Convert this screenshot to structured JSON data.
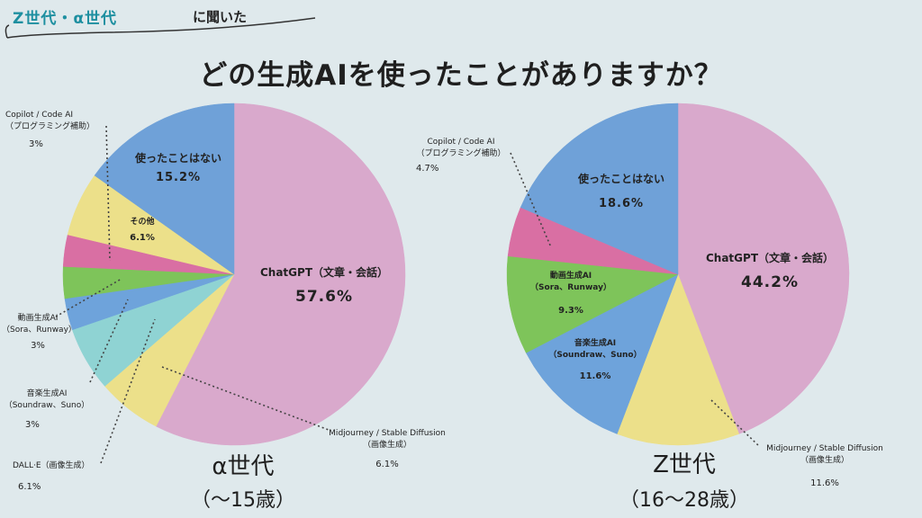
{
  "header": {
    "tag": "Z世代・α世代",
    "tag_suffix": "に聞いた"
  },
  "title": "どの生成AIを使ったことがありますか？",
  "chart_data": [
    {
      "type": "pie",
      "title": "α世代",
      "subtitle": "（～15歳）",
      "slices": [
        {
          "label": "ChatGPT（文章・会話）",
          "value": 57.6,
          "color": "#d9a9cc",
          "pct_text": "57.6%"
        },
        {
          "label": "Midjourney / Stable Diffusion（画像生成）",
          "value": 6.1,
          "color": "#ece08a",
          "pct_text": "6.1%"
        },
        {
          "label": "DALL·E（画像生成）",
          "value": 6.1,
          "color": "#8fd3d3",
          "pct_text": "6.1%"
        },
        {
          "label": "音楽生成AI（Soundraw、Suno）",
          "value": 3,
          "color": "#6ea3db",
          "pct_text": "3%"
        },
        {
          "label": "動画生成AI（Sora、Runway）",
          "value": 3,
          "color": "#7ec45a",
          "pct_text": "3%"
        },
        {
          "label": "Copilot / Code AI（プログラミング補助）",
          "value": 3,
          "color": "#d96fa3",
          "pct_text": "3%"
        },
        {
          "label": "その他",
          "value": 6.1,
          "color": "#ece08a",
          "pct_text": "6.1%"
        },
        {
          "label": "使ったことはない",
          "value": 15.2,
          "color": "#6fa1d8",
          "pct_text": "15.2%"
        }
      ]
    },
    {
      "type": "pie",
      "title": "Z世代",
      "subtitle": "（16～28歳）",
      "slices": [
        {
          "label": "ChatGPT（文章・会話）",
          "value": 44.2,
          "color": "#d9a9cc",
          "pct_text": "44.2%"
        },
        {
          "label": "Midjourney / Stable Diffusion（画像生成）",
          "value": 11.6,
          "color": "#ece08a",
          "pct_text": "11.6%"
        },
        {
          "label": "音楽生成AI（Soundraw、Suno）",
          "value": 11.6,
          "color": "#6ea3db",
          "pct_text": "11.6%"
        },
        {
          "label": "動画生成AI（Sora、Runway）",
          "value": 9.3,
          "color": "#7ec45a",
          "pct_text": "9.3%"
        },
        {
          "label": "Copilot / Code AI（プログラミング補助）",
          "value": 4.7,
          "color": "#d96fa3",
          "pct_text": "4.7%"
        },
        {
          "label": "使ったことはない",
          "value": 18.6,
          "color": "#6fa1d8",
          "pct_text": "18.6%"
        }
      ]
    }
  ],
  "labels": {
    "alpha": {
      "chatgpt_name": "ChatGPT（文章・会話）",
      "chatgpt_pct": "57.6%",
      "never_name": "使ったことはない",
      "never_pct": "15.2%",
      "other_name": "その他",
      "other_pct": "6.1%",
      "copilot_l1": "Copilot / Code AI",
      "copilot_l2": "（プログラミング補助）",
      "copilot_pct": "3%",
      "video_l1": "動画生成AI",
      "video_l2": "（Sora、Runway）",
      "video_pct": "3%",
      "music_l1": "音楽生成AI",
      "music_l2": "（Soundraw、Suno）",
      "music_pct": "3%",
      "dalle_l1": "DALL·E（画像生成）",
      "dalle_pct": "6.1%",
      "mj_l1": "Midjourney / Stable Diffusion",
      "mj_l2": "（画像生成）",
      "mj_pct": "6.1%"
    },
    "z": {
      "chatgpt_name": "ChatGPT（文章・会話）",
      "chatgpt_pct": "44.2%",
      "never_name": "使ったことはない",
      "never_pct": "18.6%",
      "copilot_l1": "Copilot / Code AI",
      "copilot_l2": "（プログラミング補助）",
      "copilot_pct": "4.7%",
      "video_l1": "動画生成AI",
      "video_l2": "（Sora、Runway）",
      "video_pct": "9.3%",
      "music_l1": "音楽生成AI",
      "music_l2": "（Soundraw、Suno）",
      "music_pct": "11.6%",
      "mj_l1": "Midjourney / Stable Diffusion",
      "mj_l2": "（画像生成）",
      "mj_pct": "11.6%"
    }
  }
}
